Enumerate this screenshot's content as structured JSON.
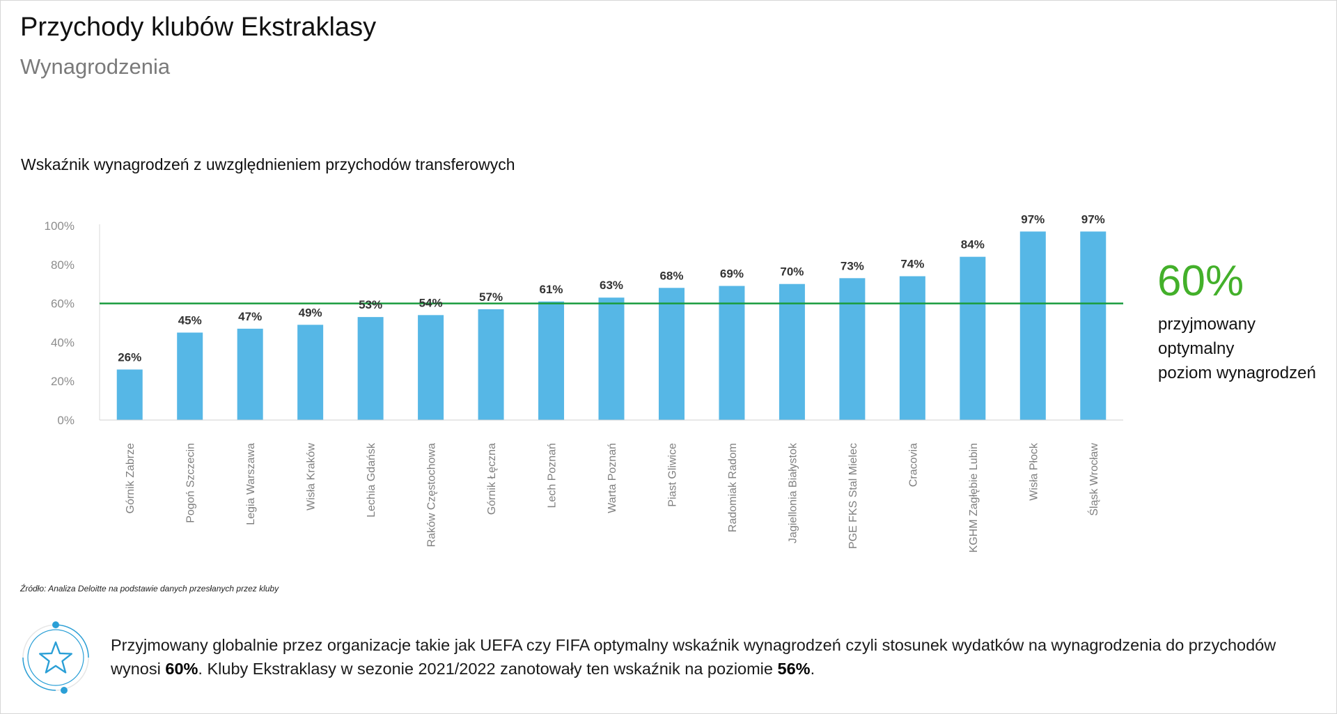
{
  "header": {
    "title": "Przychody klubów Ekstraklasy",
    "subtitle": "Wynagrodzenia"
  },
  "chart_data": {
    "type": "bar",
    "title": "Wskaźnik wynagrodzeń z uwzględnieniem przychodów transferowych",
    "xlabel": "",
    "ylabel": "",
    "ylim": [
      0,
      100
    ],
    "yticks": [
      "0%",
      "20%",
      "40%",
      "60%",
      "80%",
      "100%"
    ],
    "grid": false,
    "categories": [
      "Górnik Zabrze",
      "Pogoń Szczecin",
      "Legia Warszawa",
      "Wisła Kraków",
      "Lechia Gdańsk",
      "Raków Częstochowa",
      "Górnik Łęczna",
      "Lech Poznań",
      "Warta Poznań",
      "Piast Gliwice",
      "Radomiak Radom",
      "Jagiellonia Białystok",
      "PGE FKS Stal Mielec",
      "Cracovia",
      "KGHM Zagłębie Lubin",
      "Wisła Płock",
      "Śląsk Wrocław"
    ],
    "values": [
      26,
      45,
      47,
      49,
      53,
      54,
      57,
      61,
      63,
      68,
      69,
      70,
      73,
      74,
      84,
      97,
      97
    ],
    "data_labels": [
      "26%",
      "45%",
      "47%",
      "49%",
      "53%",
      "54%",
      "57%",
      "61%",
      "63%",
      "68%",
      "69%",
      "70%",
      "73%",
      "74%",
      "84%",
      "97%",
      "97%"
    ],
    "reference_line": {
      "value": 60,
      "color": "#1a9c3e"
    },
    "bar_color": "#56b7e6"
  },
  "annotation": {
    "value": "60%",
    "lines": [
      "przyjmowany",
      "optymalny",
      "poziom wynagrodzeń"
    ],
    "color": "#43b02a"
  },
  "source": "Źródło: Analiza Deloitte na podstawie danych przesłanych przez kluby",
  "note": {
    "icon": "star-icon",
    "part1": "Przyjmowany globalnie przez organizacje takie jak UEFA czy FIFA optymalny wskaźnik wynagrodzeń czyli stosunek wydatków na wynagrodzenia do przychodów wynosi ",
    "bold1": "60%",
    "part2": ". Kluby Ekstraklasy w sezonie 2021/2022 zanotowały ten wskaźnik na poziomie ",
    "bold2": "56%",
    "part3": "."
  }
}
